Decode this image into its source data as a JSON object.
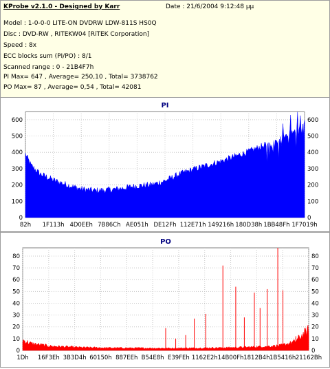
{
  "header": {
    "title": "KProbe v2.1.0 - Designed by Karr",
    "date": "Date : 21/6/2004 9:12:48 μμ",
    "model": "Model : 1-0-0-0 LITE-ON DVDRW LDW-811S   HS0Q",
    "disc": "Disc : DVD-RW , RITEKW04 [RiTEK Corporation]",
    "speed": "Speed : 8x",
    "ecc": "ECC blocks sum (PI/PO) : 8/1",
    "range": "Scanned range : 0 - 21B4F7h",
    "pi_stats": "PI Max= 647 , Average= 250,10 , Total= 3738762",
    "po_stats": "PO Max= 87 , Average= 0,54 , Total= 42081"
  },
  "colors": {
    "pi": "#0000ff",
    "po": "#ff0000",
    "title": "#000080",
    "info_bg": "#ffffe6"
  },
  "chart_data": [
    {
      "type": "area",
      "title": "PI",
      "ylim": [
        0,
        650
      ],
      "yticks": [
        0,
        100,
        200,
        300,
        400,
        500,
        600
      ],
      "grid": true,
      "xtick_labels": [
        "82h",
        "1F113h",
        "4D0EEh",
        "7B86Ch",
        "AE051h",
        "DE12Fh",
        "112E71h",
        "149216h",
        "180D38h",
        "1BB48Fh",
        "1F7019h"
      ],
      "envelope_x": [
        0,
        0.02,
        0.05,
        0.1,
        0.15,
        0.2,
        0.25,
        0.3,
        0.35,
        0.4,
        0.45,
        0.5,
        0.55,
        0.6,
        0.65,
        0.7,
        0.75,
        0.8,
        0.85,
        0.88,
        0.9,
        0.92,
        0.94,
        0.96,
        0.98,
        1.0
      ],
      "envelope_y": [
        390,
        320,
        270,
        230,
        200,
        175,
        165,
        170,
        180,
        195,
        200,
        225,
        265,
        295,
        320,
        345,
        375,
        405,
        440,
        460,
        470,
        490,
        500,
        520,
        555,
        580
      ],
      "max": 647,
      "average": 250.1
    },
    {
      "type": "bar",
      "title": "PO",
      "ylim": [
        0,
        87
      ],
      "yticks": [
        0,
        10,
        20,
        30,
        40,
        50,
        60,
        70,
        80
      ],
      "grid": true,
      "xtick_labels": [
        "1Dh",
        "16F3Eh",
        "3B3D4h",
        "60150h",
        "887EEh",
        "B54E8h",
        "E39FEh",
        "1162E2h",
        "14B00Fh",
        "1812B4h",
        "1B5416h",
        "21162Bh"
      ],
      "baseline_x": [
        0,
        0.03,
        0.1,
        0.2,
        0.3,
        0.4,
        0.5,
        0.6,
        0.7,
        0.8,
        0.9,
        0.95,
        1.0
      ],
      "baseline_y": [
        6,
        4,
        2.5,
        1.8,
        1.5,
        1.4,
        1.3,
        1.4,
        1.6,
        2,
        2.8,
        5,
        12
      ],
      "spikes": [
        {
          "x": 0.5,
          "value": 19
        },
        {
          "x": 0.535,
          "value": 10
        },
        {
          "x": 0.57,
          "value": 13
        },
        {
          "x": 0.6,
          "value": 27
        },
        {
          "x": 0.64,
          "value": 31
        },
        {
          "x": 0.7,
          "value": 72
        },
        {
          "x": 0.745,
          "value": 54
        },
        {
          "x": 0.775,
          "value": 28
        },
        {
          "x": 0.81,
          "value": 49
        },
        {
          "x": 0.83,
          "value": 36
        },
        {
          "x": 0.855,
          "value": 52
        },
        {
          "x": 0.892,
          "value": 87
        },
        {
          "x": 0.91,
          "value": 51
        },
        {
          "x": 0.955,
          "value": 12
        }
      ],
      "max": 87,
      "average": 0.54
    }
  ]
}
